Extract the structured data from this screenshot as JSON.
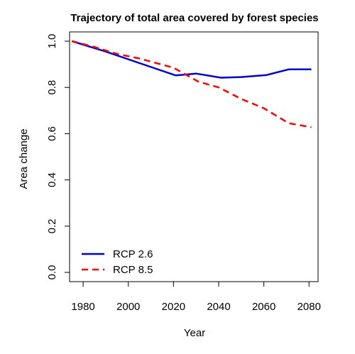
{
  "chart_data": {
    "type": "line",
    "title": "Trajectory of total area covered by forest species",
    "xlabel": "Year",
    "ylabel": "Area change",
    "xlim": [
      1974,
      2084
    ],
    "ylim": [
      -0.04,
      1.04
    ],
    "xticks": [
      1980,
      2000,
      2020,
      2040,
      2060,
      2080
    ],
    "yticks": [
      0.0,
      0.2,
      0.4,
      0.6,
      0.8,
      1.0
    ],
    "yticklabels": [
      "0.0",
      "0.2",
      "0.4",
      "0.6",
      "0.8",
      "1.0"
    ],
    "grid": false,
    "legend_position": "bottom-left",
    "series": [
      {
        "name": "RCP 2.6",
        "color": "#0000cc",
        "line_style": "solid",
        "x": [
          1975,
          1990,
          2005,
          2021,
          2030,
          2041,
          2050,
          2061,
          2071,
          2081
        ],
        "y": [
          1.0,
          0.955,
          0.905,
          0.852,
          0.86,
          0.842,
          0.845,
          0.853,
          0.878,
          0.878
        ]
      },
      {
        "name": "RCP 8.5",
        "color": "#ff0000",
        "line_style": "dashed",
        "x": [
          1975,
          1985,
          1995,
          2005,
          2020,
          2031,
          2040,
          2050,
          2060,
          2071,
          2081
        ],
        "y": [
          1.0,
          0.975,
          0.945,
          0.925,
          0.885,
          0.825,
          0.8,
          0.75,
          0.71,
          0.645,
          0.628
        ]
      }
    ]
  }
}
